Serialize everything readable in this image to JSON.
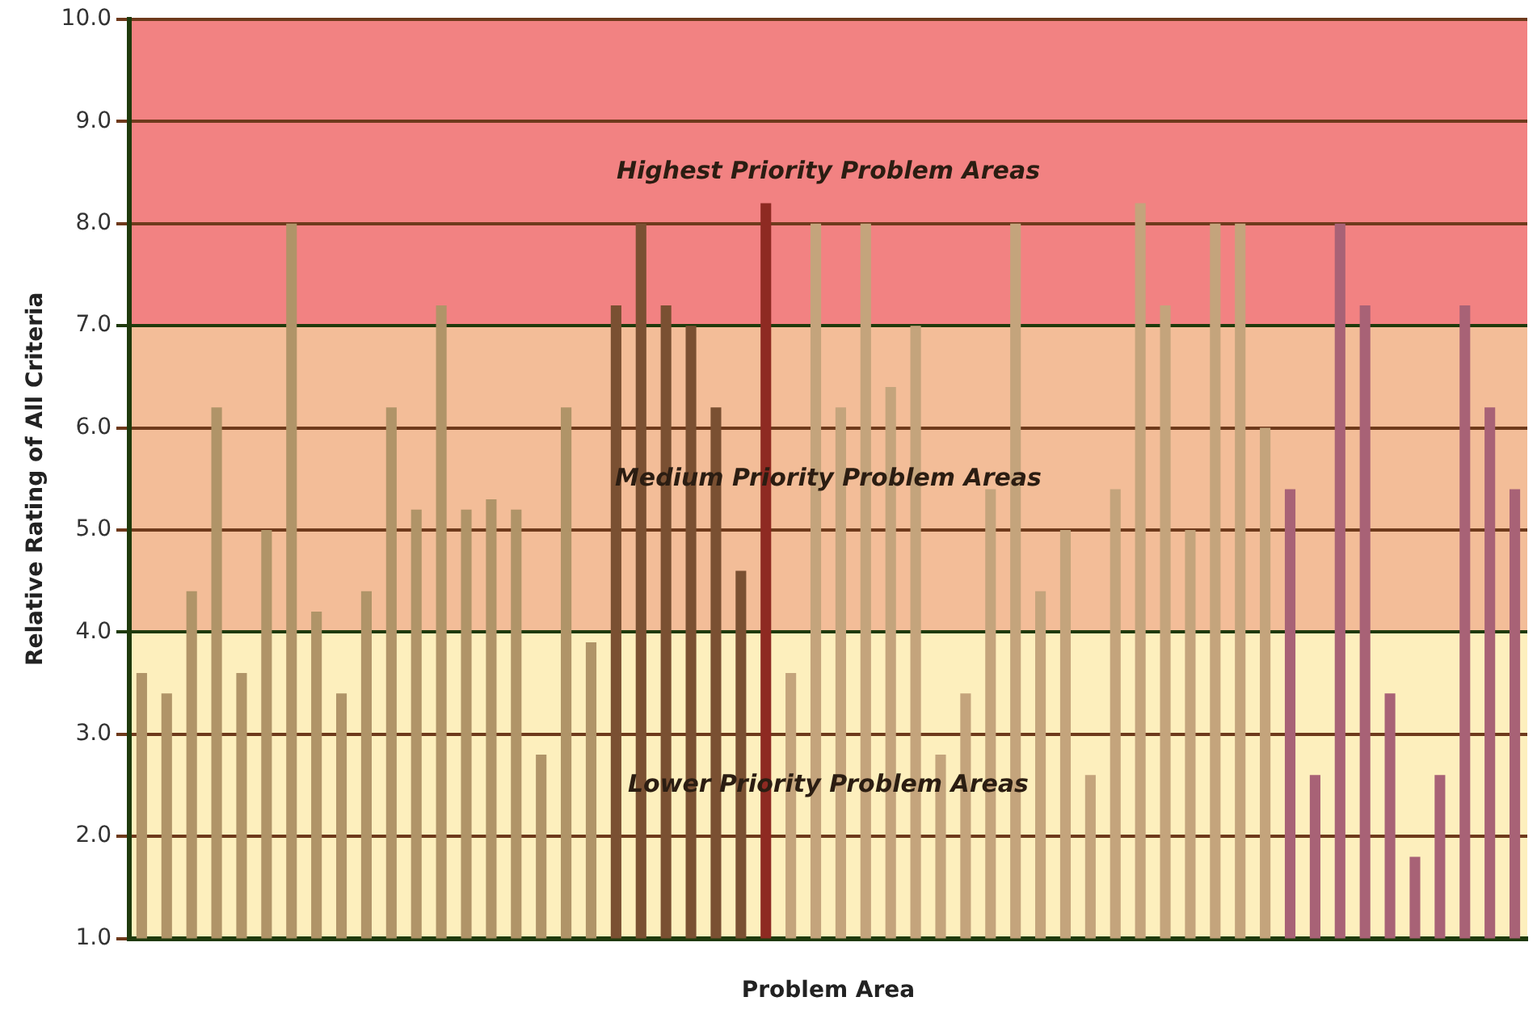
{
  "chart_data": {
    "type": "bar",
    "xlabel": "Problem Area",
    "ylabel": "Relative Rating of All Criteria",
    "categories": [
      null,
      null,
      null,
      null,
      null,
      null,
      null,
      null,
      null,
      null,
      null,
      null,
      null,
      null,
      null,
      null,
      null,
      null,
      null,
      null,
      null,
      null,
      null,
      null,
      null,
      null,
      null,
      null,
      null,
      null,
      null,
      null,
      null,
      null,
      null,
      null,
      null,
      null,
      null,
      null,
      null,
      null,
      null,
      null,
      null,
      null,
      null,
      null,
      null,
      null,
      null,
      null,
      null,
      null,
      null,
      null
    ],
    "values": [
      3.6,
      3.4,
      4.4,
      6.2,
      3.6,
      5.0,
      8.0,
      4.2,
      3.4,
      4.4,
      6.2,
      5.2,
      7.2,
      5.2,
      5.3,
      5.2,
      2.8,
      6.2,
      3.9,
      7.2,
      8.0,
      7.2,
      7.0,
      6.2,
      4.6,
      8.2,
      3.6,
      8.0,
      6.2,
      8.0,
      6.4,
      7.0,
      2.8,
      3.4,
      5.4,
      8.0,
      4.4,
      5.0,
      2.6,
      5.4,
      8.2,
      7.2,
      5.0,
      8.0,
      8.0,
      6.0,
      5.4,
      2.6,
      8.0,
      7.2,
      3.4,
      1.8,
      2.6,
      7.2,
      6.2,
      5.4
    ],
    "colors": [
      "#b09468",
      "#b09468",
      "#b09468",
      "#b09468",
      "#b09468",
      "#b09468",
      "#b09468",
      "#b09468",
      "#b09468",
      "#b09468",
      "#b09468",
      "#b09468",
      "#b09468",
      "#b09468",
      "#b09468",
      "#b09468",
      "#b09468",
      "#b09468",
      "#b09468",
      "#7a5032",
      "#7a5032",
      "#7a5032",
      "#7a5032",
      "#7a5032",
      "#7a5032",
      "#8e2a22",
      "#c4a47c",
      "#c4a47c",
      "#c4a47c",
      "#c4a47c",
      "#c4a47c",
      "#c4a47c",
      "#c4a47c",
      "#c4a47c",
      "#c4a47c",
      "#c4a47c",
      "#c4a47c",
      "#c4a47c",
      "#c4a47c",
      "#c4a47c",
      "#c4a47c",
      "#c4a47c",
      "#c4a47c",
      "#c4a47c",
      "#c4a47c",
      "#c4a47c",
      "#a86276",
      "#a86276",
      "#a86276",
      "#a86276",
      "#a86276",
      "#a86276",
      "#a86276",
      "#a86276",
      "#a86276",
      "#a86276"
    ],
    "ylim": [
      1,
      10
    ],
    "yticks": [
      {
        "value": 1,
        "label": "1.0"
      },
      {
        "value": 2,
        "label": "2.0"
      },
      {
        "value": 3,
        "label": "3.0"
      },
      {
        "value": 4,
        "label": "4.0"
      },
      {
        "value": 5,
        "label": "5.0"
      },
      {
        "value": 6,
        "label": "6.0"
      },
      {
        "value": 7,
        "label": "7.0"
      },
      {
        "value": 8,
        "label": "8.0"
      },
      {
        "value": 9,
        "label": "9.0"
      },
      {
        "value": 10,
        "label": "10.0"
      }
    ],
    "grid": "y",
    "bands": [
      {
        "axis": "y",
        "from": 1,
        "to": 4,
        "label": "Lower Priority Problem Areas",
        "color": "#fdefbd"
      },
      {
        "axis": "y",
        "from": 4,
        "to": 7,
        "label": "Medium Priority Problem Areas",
        "color": "#f3bd98"
      },
      {
        "axis": "y",
        "from": 7,
        "to": 10,
        "label": "Highest Priority Problem Areas",
        "color": "#f28282"
      }
    ]
  }
}
